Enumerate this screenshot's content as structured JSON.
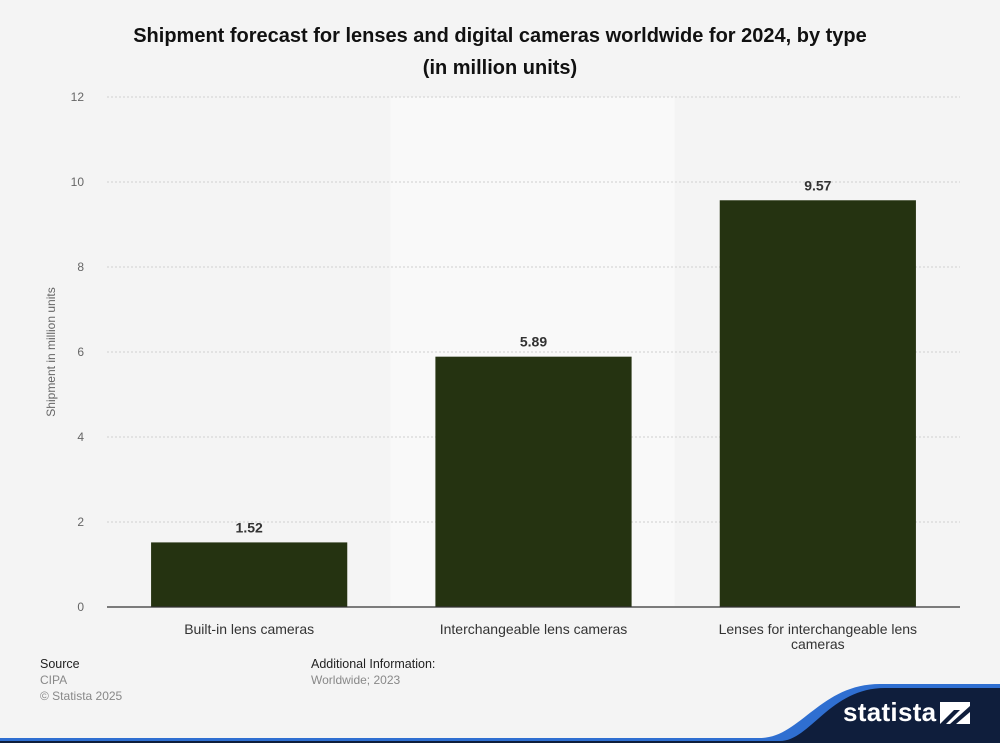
{
  "chart_data": {
    "type": "bar",
    "title": "Shipment forecast for lenses and digital cameras worldwide for 2024, by type (in million units)",
    "title_lines": [
      "Shipment forecast for lenses and digital cameras worldwide for 2024, by type",
      "(in million units)"
    ],
    "categories": [
      "Built-in lens cameras",
      "Interchangeable lens cameras",
      "Lenses for interchangeable lens cameras"
    ],
    "category_lines": [
      [
        "Built-in lens cameras"
      ],
      [
        "Interchangeable lens cameras"
      ],
      [
        "Lenses for interchangeable lens",
        "cameras"
      ]
    ],
    "values": [
      1.52,
      5.89,
      9.57
    ],
    "value_labels": [
      "1.52",
      "5.89",
      "9.57"
    ],
    "xlabel": "",
    "ylabel": "Shipment in million units",
    "ylim": [
      0,
      12
    ],
    "yticks": [
      0,
      2,
      4,
      6,
      8,
      10,
      12
    ],
    "grid": true,
    "highlighted_category_index": 1,
    "colors": {
      "bar": "#253311",
      "background": "#f4f4f4",
      "highlight_band": "#f9f9f9",
      "grid": "#cfcfcf",
      "axis": "#333333",
      "brand_navy": "#0f1e3c",
      "brand_blue": "#2f6fd1"
    }
  },
  "footer": {
    "source_heading": "Source",
    "source_name": "CIPA",
    "copyright": "© Statista 2025",
    "additional_heading": "Additional Information:",
    "additional_text": "Worldwide; 2023"
  },
  "brand": {
    "name": "statista",
    "logo_icon": "statista-logo-icon"
  }
}
